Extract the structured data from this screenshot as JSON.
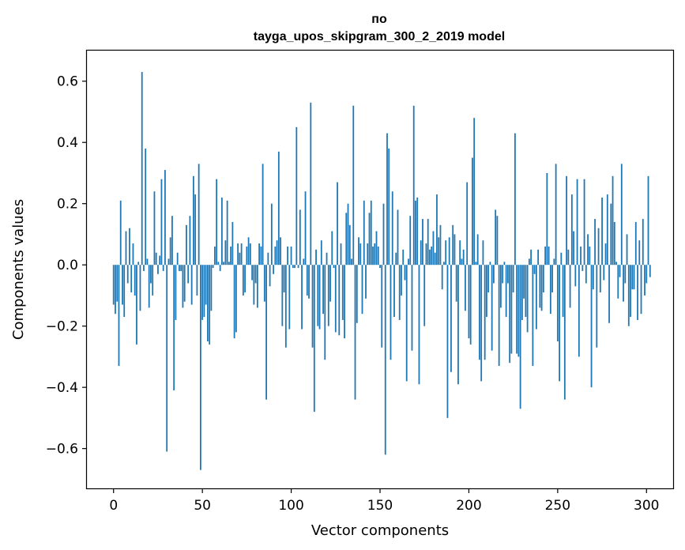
{
  "chart_data": {
    "type": "bar",
    "title": "по\ntayga_upos_skipgram_300_2_2019 model",
    "title_lines": [
      "по",
      "tayga_upos_skipgram_300_2_2019 model"
    ],
    "xlabel": "Vector components",
    "ylabel": "Components values",
    "xlim": [
      -15,
      315
    ],
    "ylim": [
      -0.73,
      0.7
    ],
    "xticks": [
      0,
      50,
      100,
      150,
      200,
      250,
      300
    ],
    "xtick_labels": [
      "0",
      "50",
      "100",
      "150",
      "200",
      "250",
      "300"
    ],
    "yticks": [
      -0.6,
      -0.4,
      -0.2,
      0.0,
      0.2,
      0.4,
      0.6
    ],
    "ytick_labels": [
      "−0.6",
      "−0.4",
      "−0.2",
      "0.0",
      "0.2",
      "0.4",
      "0.6"
    ],
    "bar_color": "#1f77b4",
    "grid": false,
    "categories": "component index 0–299",
    "values": [
      -0.13,
      -0.16,
      -0.12,
      -0.33,
      0.21,
      -0.13,
      -0.17,
      0.11,
      -0.06,
      0.12,
      -0.09,
      0.07,
      -0.1,
      -0.26,
      0.01,
      -0.15,
      0.63,
      -0.02,
      0.38,
      0.02,
      -0.14,
      -0.06,
      -0.1,
      0.24,
      0.04,
      -0.03,
      0.03,
      0.28,
      -0.02,
      0.31,
      -0.61,
      0.02,
      0.09,
      0.16,
      -0.41,
      -0.18,
      0.04,
      -0.02,
      -0.02,
      -0.14,
      -0.12,
      0.13,
      -0.06,
      0.16,
      -0.13,
      0.29,
      0.23,
      -0.1,
      0.33,
      -0.67,
      -0.18,
      -0.17,
      -0.13,
      -0.25,
      -0.26,
      -0.15,
      -0.01,
      0.06,
      0.28,
      0.01,
      -0.02,
      0.22,
      0.01,
      0.08,
      0.21,
      0.01,
      0.06,
      0.14,
      -0.24,
      -0.22,
      0.07,
      0.04,
      0.07,
      -0.1,
      -0.09,
      0.06,
      0.09,
      0.07,
      -0.05,
      -0.13,
      -0.06,
      -0.14,
      0.07,
      0.06,
      0.33,
      -0.12,
      -0.44,
      0.04,
      -0.07,
      0.2,
      -0.03,
      0.06,
      0.08,
      0.37,
      0.09,
      -0.2,
      -0.09,
      -0.27,
      0.06,
      -0.21,
      0.06,
      -0.01,
      -0.01,
      0.45,
      -0.01,
      0.18,
      -0.21,
      0.02,
      0.24,
      -0.1,
      -0.11,
      0.53,
      -0.27,
      -0.48,
      0.05,
      -0.2,
      -0.21,
      0.08,
      -0.16,
      -0.31,
      0.04,
      -0.2,
      -0.12,
      0.11,
      -0.01,
      -0.22,
      0.27,
      -0.23,
      0.07,
      -0.18,
      -0.24,
      0.17,
      0.2,
      0.13,
      0.02,
      0.52,
      -0.44,
      -0.19,
      0.09,
      0.07,
      -0.16,
      0.21,
      -0.11,
      0.07,
      0.17,
      0.21,
      0.06,
      0.07,
      0.11,
      0.06,
      -0.01,
      -0.27,
      0.2,
      -0.62,
      0.43,
      0.38,
      -0.31,
      0.24,
      -0.17,
      0.04,
      0.18,
      -0.18,
      -0.1,
      0.05,
      -0.05,
      -0.38,
      0.02,
      0.16,
      -0.28,
      0.52,
      0.21,
      0.22,
      -0.39,
      0.08,
      0.15,
      -0.2,
      0.07,
      0.15,
      0.05,
      0.06,
      0.11,
      0.04,
      0.23,
      0.09,
      0.13,
      -0.08,
      0.01,
      0.08,
      -0.5,
      0.09,
      -0.35,
      0.13,
      0.1,
      -0.12,
      -0.39,
      0.08,
      0.02,
      0.05,
      -0.15,
      0.27,
      -0.24,
      -0.26,
      0.35,
      0.48,
      0.01,
      0.1,
      -0.31,
      -0.38,
      0.08,
      -0.31,
      -0.17,
      -0.09,
      0.01,
      -0.28,
      -0.06,
      0.18,
      0.16,
      -0.33,
      -0.14,
      -0.06,
      0.01,
      -0.17,
      -0.06,
      -0.32,
      -0.29,
      -0.09,
      0.43,
      -0.29,
      -0.3,
      -0.47,
      -0.18,
      -0.11,
      -0.17,
      -0.22,
      0.02,
      0.05,
      -0.33,
      -0.03,
      -0.21,
      0.05,
      -0.14,
      -0.15,
      -0.09,
      0.06,
      0.3,
      0.06,
      -0.16,
      -0.09,
      0.02,
      0.33,
      -0.25,
      -0.38,
      0.04,
      -0.17,
      -0.44,
      0.29,
      0.05,
      -0.14,
      0.23,
      0.11,
      -0.07,
      0.28,
      -0.3,
      0.06,
      -0.02,
      0.28,
      -0.06,
      0.1,
      0.06,
      -0.4,
      -0.08,
      0.15,
      -0.27,
      0.12,
      -0.09,
      0.22,
      -0.05,
      0.07,
      0.23,
      -0.19,
      0.2,
      0.29,
      0.14,
      0.01,
      -0.11,
      -0.04,
      0.33,
      -0.12,
      -0.06,
      0.1,
      -0.2,
      -0.17,
      -0.08,
      -0.08,
      0.14,
      -0.18,
      0.08,
      -0.16,
      0.15,
      -0.1,
      -0.06,
      0.29,
      -0.04
    ]
  }
}
